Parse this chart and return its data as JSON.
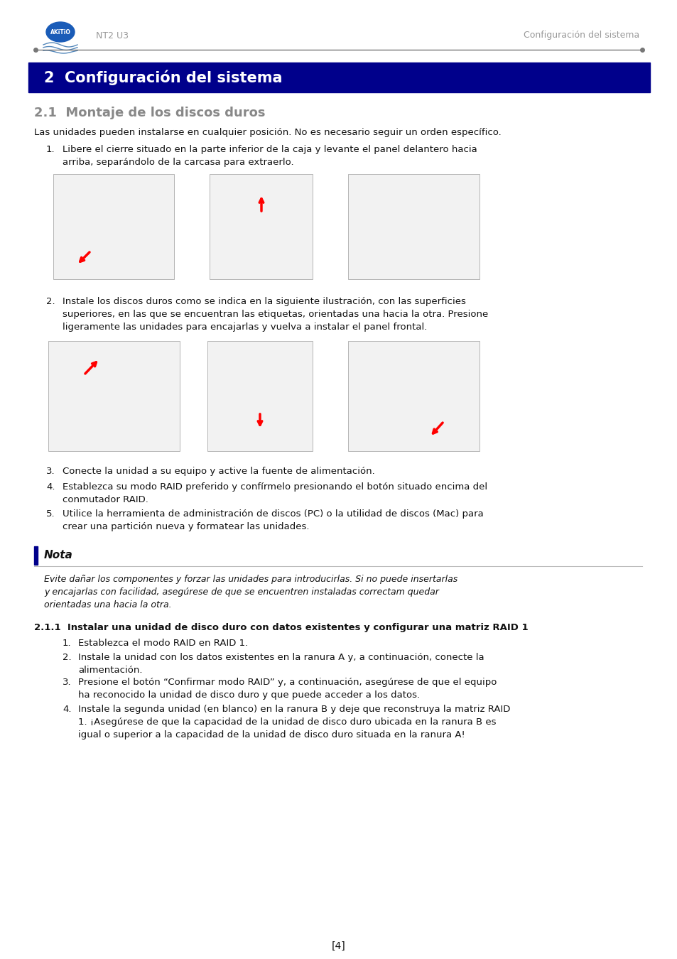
{
  "page_bg": "#ffffff",
  "header_logo_color": "#1a5cb8",
  "header_text_left": "NT2 U3",
  "header_text_right": "Configuración del sistema",
  "header_text_color": "#999999",
  "section_banner_color": "#00008B",
  "section_banner_text": "2  Configuración del sistema",
  "section_banner_text_color": "#ffffff",
  "subsection_title": "2.1  Montaje de los discos duros",
  "subsection_title_color": "#888888",
  "body_text_color": "#111111",
  "intro_text": "Las unidades pueden instalarse en cualquier posición. No es necesario seguir un orden específico.",
  "item1_text": "Libere el cierre situado en la parte inferior de la caja y levante el panel delantero hacia\narriba, separándolo de la carcasa para extraerlo.",
  "item2_text": "Instale los discos duros como se indica en la siguiente ilustración, con las superficies\nsuperiores, en las que se encuentran las etiquetas, orientadas una hacia la otra. Presione\nligeramente las unidades para encajarlas y vuelva a instalar el panel frontal.",
  "item3_text": "Conecte la unidad a su equipo y active la fuente de alimentación.",
  "item4_text": "Establezca su modo RAID preferido y confírmelo presionando el botón situado encima del\nconmutador RAID.",
  "item5_text": "Utilice la herramienta de administración de discos (PC) o la utilidad de discos (Mac) para\ncrear una partición nueva y formatear las unidades.",
  "nota_label": "Nota",
  "nota_text": "Evite dañar los componentes y forzar las unidades para introducirlas. Si no puede insertarlas\ny encajarlas con facilidad, asegúrese de que se encuentren instaladas correctam quedar\norientadas una hacia la otra.",
  "nota_bar_color": "#00008B",
  "nota_line_color": "#aaaaaa",
  "subsection2_title": "2.1.1  Instalar una unidad de disco duro con datos existentes y configurar una matriz RAID 1",
  "sub2_item1": "Establezca el modo RAID en RAID 1.",
  "sub2_item2": "Instale la unidad con los datos existentes en la ranura A y, a continuación, conecte la\nalimentación.",
  "sub2_item3": "Presione el botón “Confirmar modo RAID” y, a continuación, asegúrese de que el equipo\nha reconocido la unidad de disco duro y que puede acceder a los datos.",
  "sub2_item4": "Instale la segunda unidad (en blanco) en la ranura B y deje que reconstruya la matriz RAID\n1. ¡Asegúrese de que la capacidad de la unidad de disco duro ubicada en la ranura B es\nigual o superior a la capacidad de la unidad de disco duro situada en la ranura A!",
  "footer_text": "[4]",
  "line_color": "#555555"
}
